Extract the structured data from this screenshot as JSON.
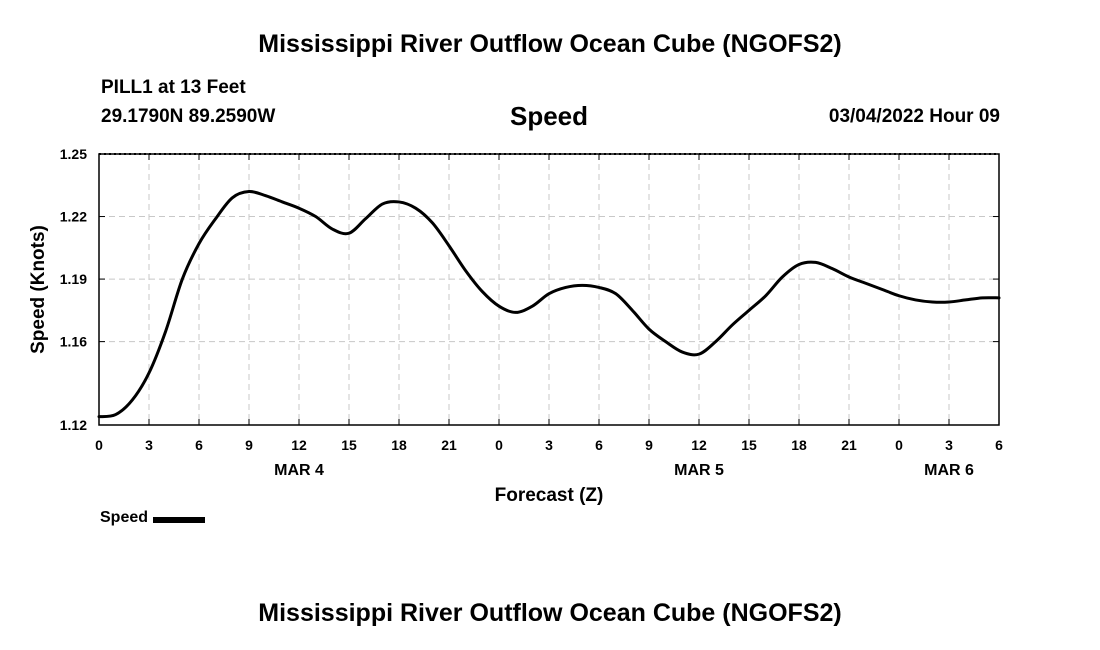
{
  "header": {
    "title": "Mississippi River Outflow Ocean Cube (NGOFS2)",
    "station": "PILL1 at 13 Feet",
    "coordinates": "29.1790N  89.2590W",
    "variable": "Speed",
    "datetime": "03/04/2022 Hour 09"
  },
  "legend": {
    "label": "Speed"
  },
  "footer": {
    "title": "Mississippi River Outflow Ocean Cube (NGOFS2)"
  },
  "chart_data": {
    "type": "line",
    "title": "Speed",
    "xlabel": "Forecast (Z)",
    "ylabel": "Speed (Knots)",
    "x_hours_range": [
      0,
      54
    ],
    "x_tick_hours": [
      0,
      3,
      6,
      9,
      12,
      15,
      18,
      21,
      24,
      27,
      30,
      33,
      36,
      39,
      42,
      45,
      48,
      51,
      54
    ],
    "x_tick_labels": [
      "0",
      "3",
      "6",
      "9",
      "12",
      "15",
      "18",
      "21",
      "0",
      "3",
      "6",
      "9",
      "12",
      "15",
      "18",
      "21",
      "0",
      "3",
      "6"
    ],
    "date_labels": [
      {
        "hour": 12,
        "label": "MAR 4"
      },
      {
        "hour": 36,
        "label": "MAR 5"
      },
      {
        "hour": 51,
        "label": "MAR 6"
      }
    ],
    "ylim": [
      1.12,
      1.25
    ],
    "y_ticks": [
      1.12,
      1.16,
      1.19,
      1.22,
      1.25
    ],
    "y_tick_labels": [
      "1.12",
      "1.16",
      "1.19",
      "1.22",
      "1.25"
    ],
    "grid": true,
    "legend_position": "bottom-left",
    "series": [
      {
        "name": "Speed",
        "color": "#000000",
        "x": [
          0,
          1,
          2,
          3,
          4,
          5,
          6,
          7,
          8,
          9,
          10,
          11,
          12,
          13,
          14,
          15,
          16,
          17,
          18,
          19,
          20,
          21,
          22,
          23,
          24,
          25,
          26,
          27,
          28,
          29,
          30,
          31,
          32,
          33,
          34,
          35,
          36,
          37,
          38,
          39,
          40,
          41,
          42,
          43,
          44,
          45,
          46,
          47,
          48,
          49,
          50,
          51,
          52,
          53,
          54
        ],
        "y": [
          1.124,
          1.125,
          1.132,
          1.145,
          1.165,
          1.19,
          1.207,
          1.219,
          1.229,
          1.232,
          1.23,
          1.227,
          1.224,
          1.22,
          1.214,
          1.212,
          1.219,
          1.226,
          1.227,
          1.224,
          1.217,
          1.206,
          1.194,
          1.184,
          1.177,
          1.174,
          1.177,
          1.183,
          1.186,
          1.187,
          1.186,
          1.183,
          1.175,
          1.166,
          1.16,
          1.155,
          1.154,
          1.16,
          1.168,
          1.175,
          1.182,
          1.191,
          1.197,
          1.198,
          1.195,
          1.191,
          1.188,
          1.185,
          1.182,
          1.18,
          1.179,
          1.179,
          1.18,
          1.181,
          1.181
        ]
      }
    ]
  }
}
